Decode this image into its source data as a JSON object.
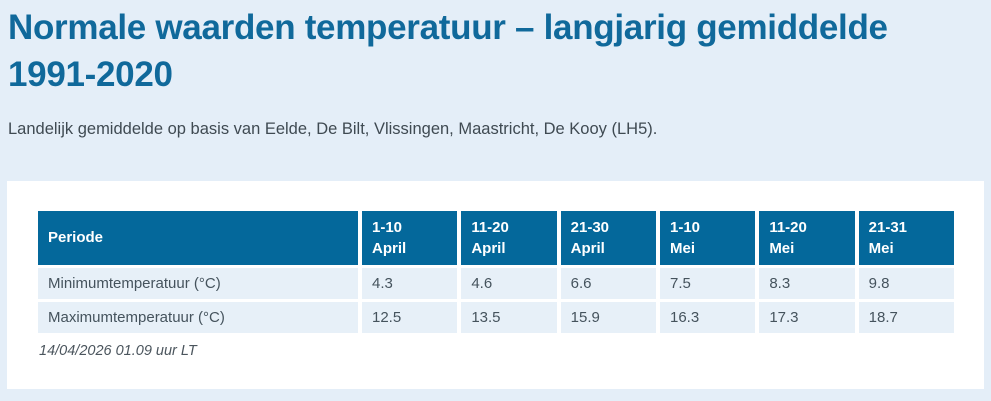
{
  "page": {
    "title": "Normale waarden temperatuur – langjarig gemiddelde 1991-2020",
    "subtitle": "Landelijk gemiddelde op basis van Eelde, De Bilt, Vlissingen, Maastricht, De Kooy (LH5).",
    "timestamp": "14/04/2026 01.09 uur LT"
  },
  "colors": {
    "page_background": "#e4eef8",
    "card_background": "#ffffff",
    "title_text": "#10699b",
    "table_header_background": "#04689b",
    "table_header_text": "#ffffff",
    "table_row_background": "#e7f0f8",
    "table_body_text": "#45535d"
  },
  "table": {
    "periode_label": "Periode",
    "columns": [
      {
        "period": "1-10",
        "month": "April"
      },
      {
        "period": "11-20",
        "month": "April"
      },
      {
        "period": "21-30",
        "month": "April"
      },
      {
        "period": "1-10",
        "month": "Mei"
      },
      {
        "period": "11-20",
        "month": "Mei"
      },
      {
        "period": "21-31",
        "month": "Mei"
      }
    ],
    "rows": [
      {
        "label": "Minimumtemperatuur (°C)",
        "values": [
          "4.3",
          "4.6",
          "6.6",
          "7.5",
          "8.3",
          "9.8"
        ]
      },
      {
        "label": "Maximumtemperatuur (°C)",
        "values": [
          "12.5",
          "13.5",
          "15.9",
          "16.3",
          "17.3",
          "18.7"
        ]
      }
    ]
  },
  "chart_data": {
    "type": "table",
    "title": "Normale waarden temperatuur – langjarig gemiddelde 1991-2020",
    "categories": [
      "1-10 April",
      "11-20 April",
      "21-30 April",
      "1-10 Mei",
      "11-20 Mei",
      "21-31 Mei"
    ],
    "series": [
      {
        "name": "Minimumtemperatuur (°C)",
        "values": [
          4.3,
          4.6,
          6.6,
          7.5,
          8.3,
          9.8
        ]
      },
      {
        "name": "Maximumtemperatuur (°C)",
        "values": [
          12.5,
          13.5,
          15.9,
          16.3,
          17.3,
          18.7
        ]
      }
    ]
  }
}
